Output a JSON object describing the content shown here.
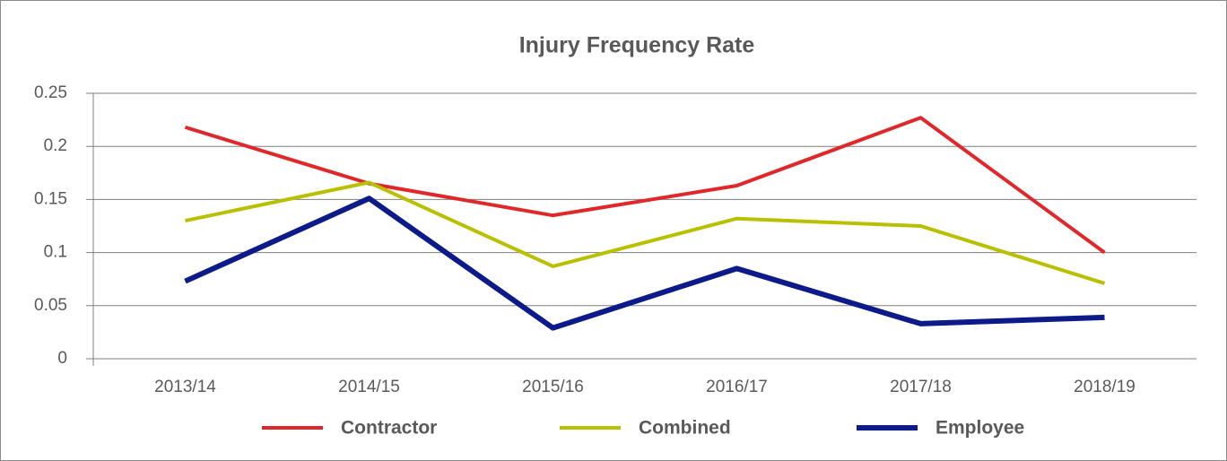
{
  "chart_data": {
    "type": "line",
    "title": "Injury Frequency Rate",
    "categories": [
      "2013/14",
      "2014/15",
      "2015/16",
      "2016/17",
      "2017/18",
      "2018/19"
    ],
    "series": [
      {
        "name": "Contractor",
        "color": "#e0282a",
        "values": [
          0.218,
          0.165,
          0.135,
          0.163,
          0.227,
          0.1
        ]
      },
      {
        "name": "Combined",
        "color": "#b8c000",
        "values": [
          0.13,
          0.166,
          0.087,
          0.132,
          0.125,
          0.071
        ]
      },
      {
        "name": "Employee",
        "color": "#0d1a8a",
        "values": [
          0.073,
          0.151,
          0.029,
          0.085,
          0.033,
          0.039
        ]
      }
    ],
    "ylim": [
      0,
      0.25
    ],
    "yticks": [
      0,
      0.05,
      0.1,
      0.15,
      0.2,
      0.25
    ],
    "grid": true,
    "legend": "bottom"
  }
}
